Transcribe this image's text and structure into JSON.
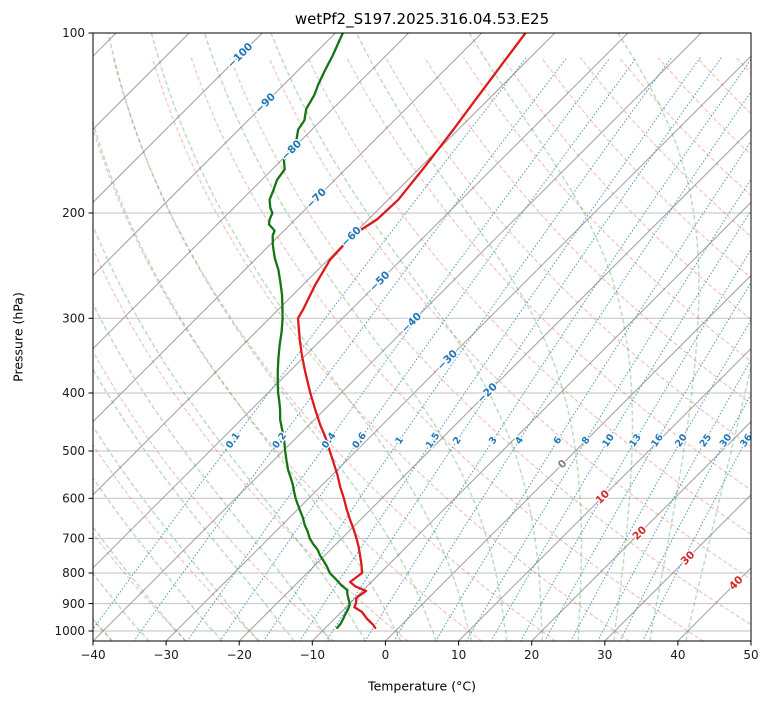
{
  "title": "wetPf2_S197.2025.316.04.53.E25",
  "axes": {
    "xlabel": "Temperature (°C)",
    "ylabel": "Pressure (hPa)",
    "x_ticks": [
      -40,
      -30,
      -20,
      -10,
      0,
      10,
      20,
      30,
      40,
      50
    ],
    "y_ticks": [
      100,
      200,
      300,
      400,
      500,
      600,
      700,
      800,
      900,
      1000
    ]
  },
  "chart_data": {
    "type": "line",
    "subtype": "skew-t-log-p",
    "title": "wetPf2_S197.2025.316.04.53.E25",
    "xlabel": "Temperature (°C)",
    "ylabel": "Pressure (hPa)",
    "x_range": [
      -40,
      50
    ],
    "pressure_range_hpa": [
      100,
      1040
    ],
    "skew_deg": 45,
    "grid": true,
    "background": {
      "pressure_gridlines": [
        100,
        200,
        300,
        400,
        500,
        600,
        700,
        800,
        900,
        1000
      ],
      "isotherms": {
        "min": -120,
        "max": 50,
        "step": 10,
        "color": "#a6a6a6",
        "labels": [
          {
            "t": -100,
            "p": 109
          },
          {
            "t": -90,
            "p": 131
          },
          {
            "t": -80,
            "p": 157
          },
          {
            "t": -70,
            "p": 189
          },
          {
            "t": -60,
            "p": 219
          },
          {
            "t": -50,
            "p": 260
          },
          {
            "t": -40,
            "p": 305
          },
          {
            "t": -30,
            "p": 352
          },
          {
            "t": -20,
            "p": 400
          },
          {
            "t": 0,
            "p": 526
          },
          {
            "t": 10,
            "p": 597
          },
          {
            "t": 20,
            "p": 686
          },
          {
            "t": 30,
            "p": 755
          },
          {
            "t": 40,
            "p": 831
          }
        ],
        "label_color_negative": "#1f77b4",
        "label_color_zero": "#7f7f7f",
        "label_color_positive": "#d62728"
      },
      "dry_adiabats": {
        "min": -40,
        "max": 200,
        "step": 10,
        "color": "rgba(214,70,50,0.32)"
      },
      "moist_adiabats": {
        "min": -40,
        "max": 44,
        "step": 5,
        "color": "rgba(40,140,60,0.30)"
      },
      "mixing_ratio_lines": {
        "values_g_kg": [
          0.1,
          0.2,
          0.4,
          0.6,
          1,
          1.5,
          2,
          3,
          4,
          6,
          8,
          10,
          13,
          16,
          20,
          25,
          30,
          36
        ],
        "label_pressure_hpa": 480,
        "color": "#3f8cc3",
        "label_color": "#1f77b4"
      }
    },
    "series": [
      {
        "name": "temperature",
        "color": "#dd1a1a",
        "width": 2.3,
        "points_p_t": [
          [
            100,
            -64.0
          ],
          [
            112,
            -63.0
          ],
          [
            128,
            -61.8
          ],
          [
            146,
            -60.6
          ],
          [
            167,
            -59.5
          ],
          [
            190,
            -58.6
          ],
          [
            205,
            -58.8
          ],
          [
            218,
            -60.0
          ],
          [
            240,
            -59.7
          ],
          [
            264,
            -58.3
          ],
          [
            290,
            -56.6
          ],
          [
            300,
            -56.1
          ],
          [
            326,
            -52.9
          ],
          [
            346,
            -50.5
          ],
          [
            366,
            -48.1
          ],
          [
            400,
            -44.2
          ],
          [
            425,
            -41.4
          ],
          [
            452,
            -38.5
          ],
          [
            475,
            -36.0
          ],
          [
            500,
            -33.6
          ],
          [
            524,
            -31.4
          ],
          [
            548,
            -29.3
          ],
          [
            575,
            -27.2
          ],
          [
            600,
            -25.2
          ],
          [
            626,
            -23.3
          ],
          [
            652,
            -21.4
          ],
          [
            675,
            -19.7
          ],
          [
            700,
            -18.0
          ],
          [
            724,
            -16.5
          ],
          [
            749,
            -15.1
          ],
          [
            775,
            -13.7
          ],
          [
            800,
            -12.5
          ],
          [
            828,
            -12.9
          ],
          [
            843,
            -11.5
          ],
          [
            857,
            -9.5
          ],
          [
            880,
            -9.9
          ],
          [
            898,
            -9.2
          ],
          [
            912,
            -8.9
          ],
          [
            929,
            -7.2
          ],
          [
            955,
            -5.5
          ],
          [
            975,
            -4.0
          ],
          [
            988,
            -3.2
          ]
        ]
      },
      {
        "name": "dewpoint",
        "color": "#157515",
        "width": 2.3,
        "points_p_t": [
          [
            100,
            -89.0
          ],
          [
            109,
            -87.3
          ],
          [
            115,
            -86.4
          ],
          [
            122,
            -85.3
          ],
          [
            127,
            -84.4
          ],
          [
            134,
            -83.6
          ],
          [
            140,
            -82.3
          ],
          [
            145,
            -81.9
          ],
          [
            151,
            -80.7
          ],
          [
            157,
            -80.3
          ],
          [
            163,
            -79.7
          ],
          [
            169,
            -78.3
          ],
          [
            176,
            -77.9
          ],
          [
            183,
            -77.0
          ],
          [
            190,
            -76.2
          ],
          [
            196,
            -75.0
          ],
          [
            200,
            -74.0
          ],
          [
            205,
            -73.5
          ],
          [
            209,
            -72.9
          ],
          [
            214,
            -71.3
          ],
          [
            218,
            -70.9
          ],
          [
            226,
            -69.6
          ],
          [
            238,
            -67.5
          ],
          [
            249,
            -65.4
          ],
          [
            262,
            -63.3
          ],
          [
            274,
            -61.5
          ],
          [
            287,
            -59.8
          ],
          [
            300,
            -58.2
          ],
          [
            316,
            -56.5
          ],
          [
            333,
            -54.9
          ],
          [
            350,
            -53.3
          ],
          [
            366,
            -51.8
          ],
          [
            383,
            -50.2
          ],
          [
            400,
            -48.6
          ],
          [
            413,
            -47.3
          ],
          [
            427,
            -46.0
          ],
          [
            444,
            -44.6
          ],
          [
            461,
            -43.0
          ],
          [
            480,
            -41.3
          ],
          [
            500,
            -39.7
          ],
          [
            519,
            -38.2
          ],
          [
            538,
            -36.7
          ],
          [
            554,
            -35.3
          ],
          [
            570,
            -34.0
          ],
          [
            585,
            -32.9
          ],
          [
            600,
            -31.8
          ],
          [
            614,
            -30.7
          ],
          [
            628,
            -29.6
          ],
          [
            646,
            -28.2
          ],
          [
            665,
            -26.9
          ],
          [
            682,
            -25.6
          ],
          [
            700,
            -24.4
          ],
          [
            716,
            -23.1
          ],
          [
            732,
            -21.7
          ],
          [
            747,
            -20.7
          ],
          [
            761,
            -19.6
          ],
          [
            780,
            -18.2
          ],
          [
            800,
            -16.9
          ],
          [
            822,
            -15.0
          ],
          [
            838,
            -13.7
          ],
          [
            854,
            -12.2
          ],
          [
            868,
            -11.6
          ],
          [
            880,
            -11.0
          ],
          [
            892,
            -10.4
          ],
          [
            905,
            -9.8
          ],
          [
            922,
            -9.4
          ],
          [
            940,
            -9.1
          ],
          [
            955,
            -8.8
          ],
          [
            972,
            -8.5
          ],
          [
            988,
            -8.4
          ]
        ]
      }
    ]
  }
}
